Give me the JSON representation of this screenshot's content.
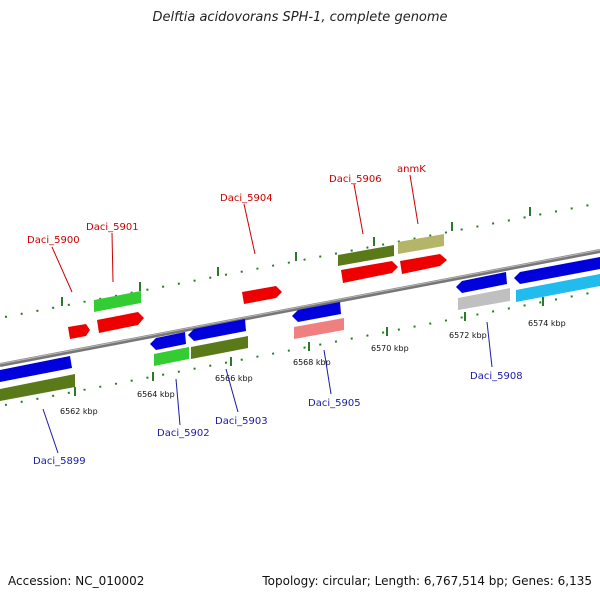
{
  "header": {
    "title": "Delftia acidovorans SPH-1, complete genome"
  },
  "footer": {
    "accession": "Accession: NC_010002",
    "topology": "Topology: circular; Length: 6,767,514 bp; Genes: 6,135"
  },
  "ticks": [
    {
      "label": "6562 kbp"
    },
    {
      "label": "6564 kbp"
    },
    {
      "label": "6566 kbp"
    },
    {
      "label": "6568 kbp"
    },
    {
      "label": "6570 kbp"
    },
    {
      "label": "6572 kbp"
    },
    {
      "label": "6574 kbp"
    }
  ],
  "genes": [
    {
      "name": "Daci_5899",
      "strand": "minus",
      "color": "#0000dd",
      "rna_color": "#5a7a1a"
    },
    {
      "name": "Daci_5900",
      "strand": "plus",
      "color": "#ee0000"
    },
    {
      "name": "Daci_5901",
      "strand": "plus",
      "color": "#ee0000",
      "rna_color": "#33cc33"
    },
    {
      "name": "Daci_5902",
      "strand": "minus",
      "color": "#0000dd",
      "rna_color": "#33cc33"
    },
    {
      "name": "Daci_5903",
      "strand": "minus",
      "color": "#0000dd",
      "rna_color": "#5a7a1a"
    },
    {
      "name": "Daci_5904",
      "strand": "plus",
      "color": "#ee0000"
    },
    {
      "name": "Daci_5905",
      "strand": "minus",
      "color": "#0000dd",
      "rna_color": "#f08080"
    },
    {
      "name": "Daci_5906",
      "strand": "plus",
      "color": "#ee0000",
      "rna_color": "#5a7a1a"
    },
    {
      "name": "anmK",
      "strand": "plus",
      "color": "#ee0000",
      "rna_color": "#b5b56a"
    },
    {
      "name": "Daci_5908",
      "strand": "minus",
      "color": "#0000dd",
      "rna_color": "#c0c0c0"
    },
    {
      "name": "",
      "strand": "minus",
      "color": "#0000dd",
      "rna_color": "#22bbee"
    }
  ],
  "colors": {
    "backbone": "#888888",
    "tick": "#2a7a2a"
  }
}
